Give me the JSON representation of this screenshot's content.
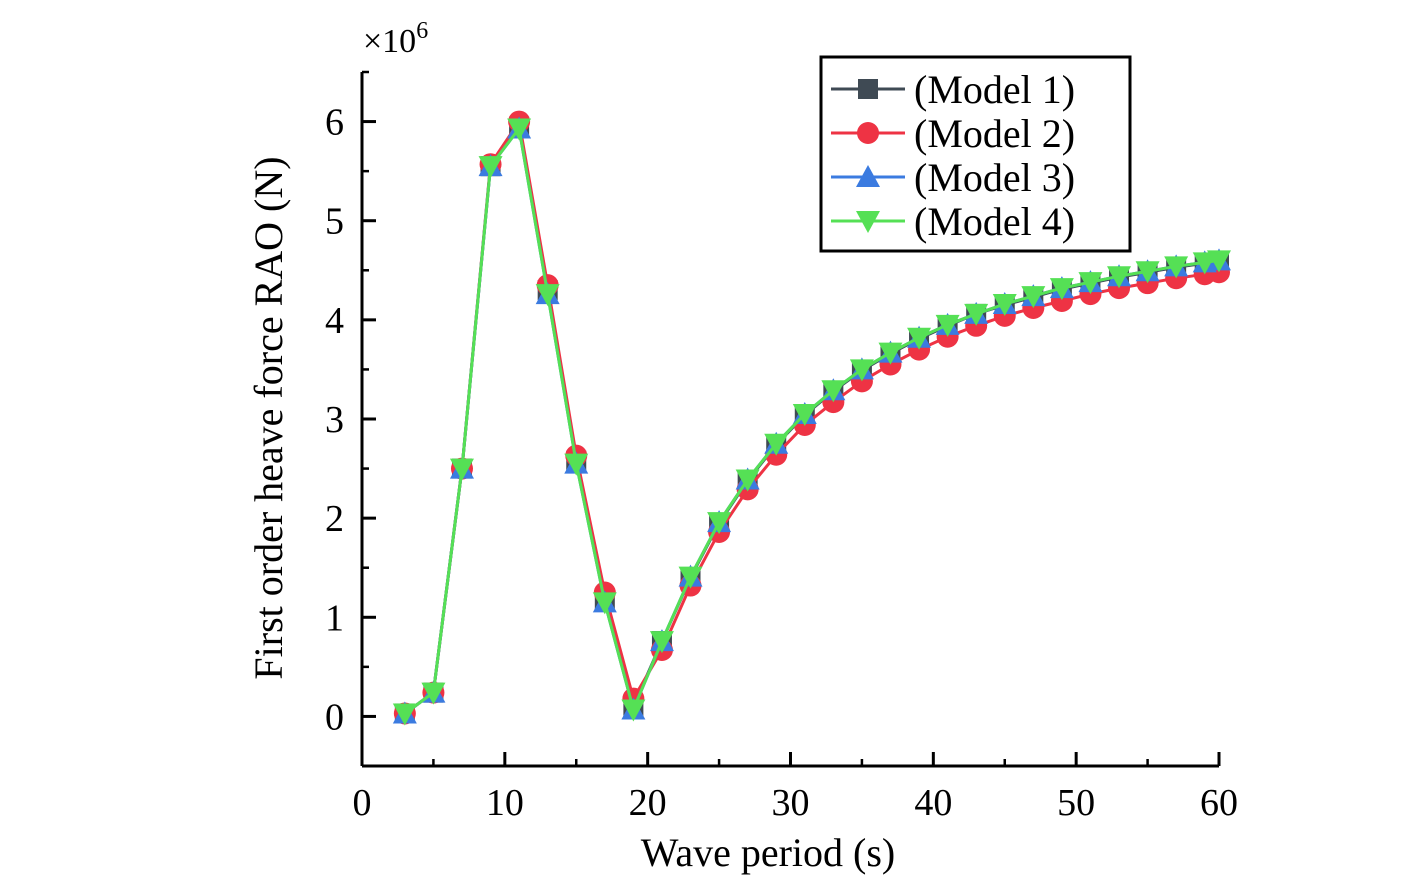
{
  "chart_data": {
    "type": "line",
    "title": "",
    "xlabel": "Wave period (s)",
    "ylabel": "First order heave force RAO (N)",
    "y_multiplier": "×10",
    "y_multiplier_exp": "6",
    "xlim": [
      0,
      60
    ],
    "ylim": [
      -0.5,
      6.5
    ],
    "xticks": [
      0,
      10,
      20,
      30,
      40,
      50,
      60
    ],
    "yticks": [
      0,
      1,
      2,
      3,
      4,
      5,
      6
    ],
    "grid": false,
    "legend_position": "top-right",
    "x": [
      3,
      5,
      7,
      9,
      11,
      13,
      15,
      17,
      19,
      21,
      23,
      25,
      27,
      29,
      31,
      33,
      35,
      37,
      39,
      41,
      43,
      45,
      47,
      49,
      51,
      53,
      55,
      57,
      59,
      60
    ],
    "series": [
      {
        "name": "(Model 1)",
        "color": "#3f4a54",
        "marker": "square",
        "values": [
          0.03,
          0.24,
          2.5,
          5.55,
          5.95,
          4.3,
          2.58,
          1.18,
          0.1,
          0.76,
          1.4,
          1.95,
          2.38,
          2.74,
          3.04,
          3.28,
          3.49,
          3.66,
          3.81,
          3.94,
          4.06,
          4.15,
          4.23,
          4.31,
          4.37,
          4.43,
          4.48,
          4.53,
          4.57,
          4.59
        ]
      },
      {
        "name": "(Model 2)",
        "color": "#ee3344",
        "marker": "circle",
        "values": [
          0.03,
          0.24,
          2.5,
          5.57,
          6.0,
          4.35,
          2.63,
          1.25,
          0.18,
          0.67,
          1.32,
          1.86,
          2.29,
          2.64,
          2.94,
          3.17,
          3.38,
          3.55,
          3.7,
          3.83,
          3.94,
          4.04,
          4.12,
          4.19,
          4.26,
          4.32,
          4.37,
          4.42,
          4.46,
          4.48
        ]
      },
      {
        "name": "(Model 3)",
        "color": "#3b7be0",
        "marker": "triangle-up",
        "values": [
          0.03,
          0.24,
          2.5,
          5.55,
          5.93,
          4.26,
          2.55,
          1.15,
          0.07,
          0.76,
          1.41,
          1.96,
          2.39,
          2.75,
          3.05,
          3.29,
          3.5,
          3.67,
          3.82,
          3.95,
          4.06,
          4.16,
          4.24,
          4.32,
          4.38,
          4.44,
          4.49,
          4.54,
          4.58,
          4.6
        ]
      },
      {
        "name": "(Model 4)",
        "color": "#55e055",
        "marker": "triangle-down",
        "values": [
          0.03,
          0.24,
          2.5,
          5.55,
          5.93,
          4.26,
          2.55,
          1.15,
          0.07,
          0.76,
          1.41,
          1.96,
          2.39,
          2.75,
          3.05,
          3.29,
          3.5,
          3.67,
          3.82,
          3.95,
          4.06,
          4.16,
          4.24,
          4.32,
          4.38,
          4.44,
          4.49,
          4.54,
          4.58,
          4.6
        ]
      }
    ]
  }
}
